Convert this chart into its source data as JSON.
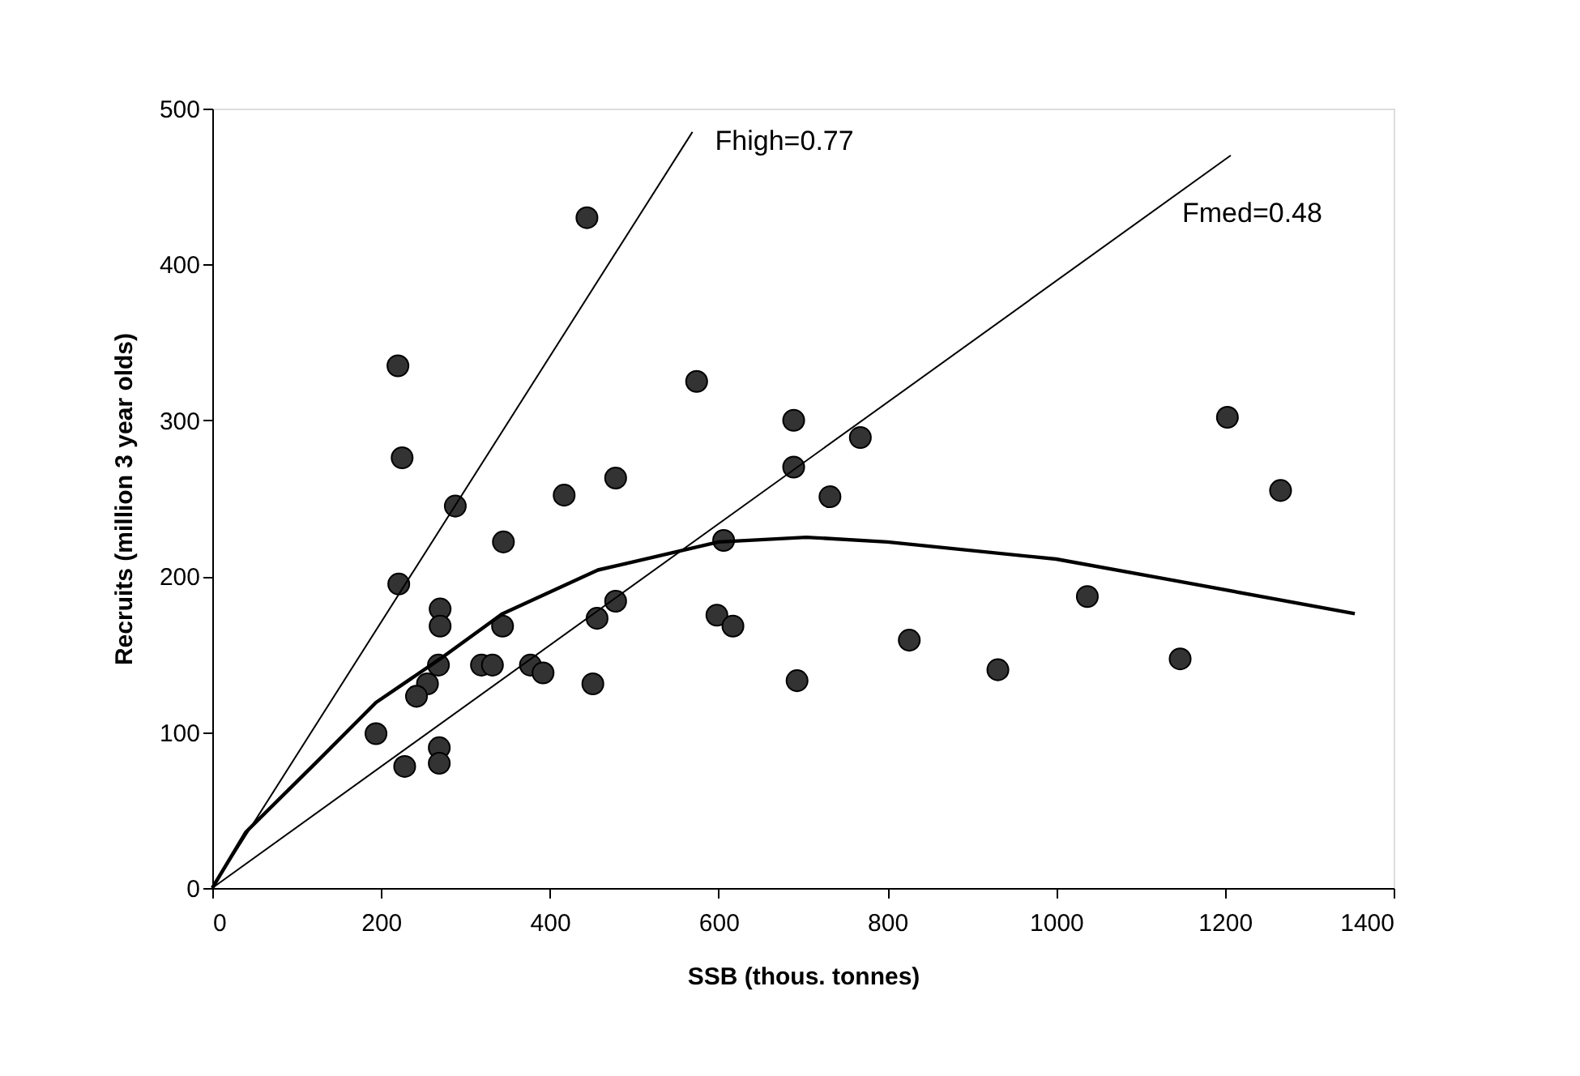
{
  "chart_data": {
    "type": "scatter",
    "xlabel": "SSB (thous. tonnes)",
    "ylabel": "Recruits (million 3 year olds)",
    "xlim": [
      0,
      1400
    ],
    "xticks": [
      0,
      200,
      400,
      600,
      800,
      1000,
      1200,
      1400
    ],
    "ylim": [
      0,
      500
    ],
    "yticks": [
      0,
      100,
      200,
      300,
      400,
      500
    ],
    "grid": false,
    "marker": "circle",
    "series": [
      {
        "color": "#333333",
        "x": [
          221,
          288,
          345,
          270,
          270,
          344,
          268,
          319,
          332,
          255,
          242,
          377,
          392,
          451,
          456,
          478,
          598,
          617,
          606,
          693,
          194,
          228,
          269,
          269,
          444,
          220,
          225,
          417,
          478,
          574,
          689,
          689,
          768,
          732,
          1203,
          1266,
          826,
          931,
          1037,
          1147
        ],
        "values": [
          195,
          245,
          222,
          179,
          168,
          168,
          143,
          143,
          143,
          131,
          123,
          143,
          138,
          131,
          173,
          184,
          175,
          168,
          223,
          133,
          99,
          78,
          90,
          80,
          430,
          335,
          276,
          252,
          263,
          325,
          300,
          270,
          289,
          251,
          302,
          255,
          159,
          140,
          187,
          147
        ]
      },
      {
        "type": "line",
        "color": "#000000",
        "marker": "none",
        "x": [
          0,
          569
        ],
        "values": [
          0,
          485
        ]
      },
      {
        "type": "line",
        "color": "#000000",
        "marker": "none",
        "x": [
          0,
          1207
        ],
        "values": [
          0,
          470
        ]
      },
      {
        "type": "line",
        "color": "#000000",
        "marker": "none",
        "x": [
          0,
          40,
          124,
          194,
          270,
          344,
          457,
          600,
          704,
          800,
          1000,
          1133,
          1354
        ],
        "values": [
          0,
          36,
          81,
          119,
          147,
          176,
          204,
          222,
          225,
          222,
          211,
          198,
          176
        ]
      }
    ],
    "annotations": [
      "Fhigh=0.77",
      "Fmed=0.48"
    ]
  }
}
